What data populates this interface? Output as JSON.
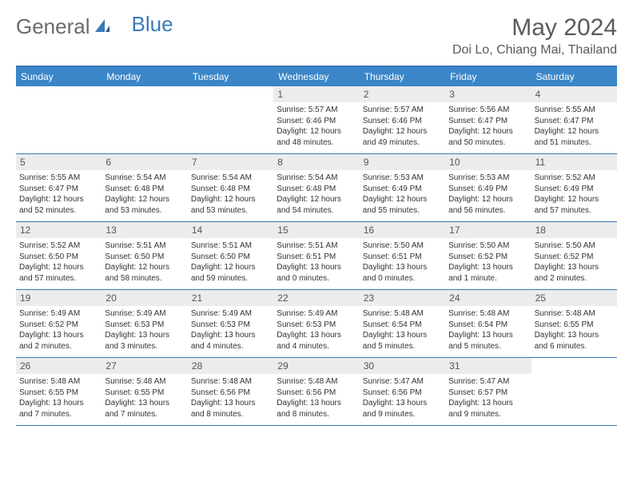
{
  "logo": {
    "text1": "General",
    "text2": "Blue"
  },
  "title": "May 2024",
  "location": "Doi Lo, Chiang Mai, Thailand",
  "colors": {
    "header_bg": "#3a86c8",
    "header_border": "#3a7ab8",
    "daynum_bg": "#ececec",
    "text": "#333333",
    "title_text": "#5a5a5a"
  },
  "day_names": [
    "Sunday",
    "Monday",
    "Tuesday",
    "Wednesday",
    "Thursday",
    "Friday",
    "Saturday"
  ],
  "weeks": [
    [
      null,
      null,
      null,
      {
        "n": "1",
        "sr": "5:57 AM",
        "ss": "6:46 PM",
        "dl1": "Daylight: 12 hours",
        "dl2": "and 48 minutes."
      },
      {
        "n": "2",
        "sr": "5:57 AM",
        "ss": "6:46 PM",
        "dl1": "Daylight: 12 hours",
        "dl2": "and 49 minutes."
      },
      {
        "n": "3",
        "sr": "5:56 AM",
        "ss": "6:47 PM",
        "dl1": "Daylight: 12 hours",
        "dl2": "and 50 minutes."
      },
      {
        "n": "4",
        "sr": "5:55 AM",
        "ss": "6:47 PM",
        "dl1": "Daylight: 12 hours",
        "dl2": "and 51 minutes."
      }
    ],
    [
      {
        "n": "5",
        "sr": "5:55 AM",
        "ss": "6:47 PM",
        "dl1": "Daylight: 12 hours",
        "dl2": "and 52 minutes."
      },
      {
        "n": "6",
        "sr": "5:54 AM",
        "ss": "6:48 PM",
        "dl1": "Daylight: 12 hours",
        "dl2": "and 53 minutes."
      },
      {
        "n": "7",
        "sr": "5:54 AM",
        "ss": "6:48 PM",
        "dl1": "Daylight: 12 hours",
        "dl2": "and 53 minutes."
      },
      {
        "n": "8",
        "sr": "5:54 AM",
        "ss": "6:48 PM",
        "dl1": "Daylight: 12 hours",
        "dl2": "and 54 minutes."
      },
      {
        "n": "9",
        "sr": "5:53 AM",
        "ss": "6:49 PM",
        "dl1": "Daylight: 12 hours",
        "dl2": "and 55 minutes."
      },
      {
        "n": "10",
        "sr": "5:53 AM",
        "ss": "6:49 PM",
        "dl1": "Daylight: 12 hours",
        "dl2": "and 56 minutes."
      },
      {
        "n": "11",
        "sr": "5:52 AM",
        "ss": "6:49 PM",
        "dl1": "Daylight: 12 hours",
        "dl2": "and 57 minutes."
      }
    ],
    [
      {
        "n": "12",
        "sr": "5:52 AM",
        "ss": "6:50 PM",
        "dl1": "Daylight: 12 hours",
        "dl2": "and 57 minutes."
      },
      {
        "n": "13",
        "sr": "5:51 AM",
        "ss": "6:50 PM",
        "dl1": "Daylight: 12 hours",
        "dl2": "and 58 minutes."
      },
      {
        "n": "14",
        "sr": "5:51 AM",
        "ss": "6:50 PM",
        "dl1": "Daylight: 12 hours",
        "dl2": "and 59 minutes."
      },
      {
        "n": "15",
        "sr": "5:51 AM",
        "ss": "6:51 PM",
        "dl1": "Daylight: 13 hours",
        "dl2": "and 0 minutes."
      },
      {
        "n": "16",
        "sr": "5:50 AM",
        "ss": "6:51 PM",
        "dl1": "Daylight: 13 hours",
        "dl2": "and 0 minutes."
      },
      {
        "n": "17",
        "sr": "5:50 AM",
        "ss": "6:52 PM",
        "dl1": "Daylight: 13 hours",
        "dl2": "and 1 minute."
      },
      {
        "n": "18",
        "sr": "5:50 AM",
        "ss": "6:52 PM",
        "dl1": "Daylight: 13 hours",
        "dl2": "and 2 minutes."
      }
    ],
    [
      {
        "n": "19",
        "sr": "5:49 AM",
        "ss": "6:52 PM",
        "dl1": "Daylight: 13 hours",
        "dl2": "and 2 minutes."
      },
      {
        "n": "20",
        "sr": "5:49 AM",
        "ss": "6:53 PM",
        "dl1": "Daylight: 13 hours",
        "dl2": "and 3 minutes."
      },
      {
        "n": "21",
        "sr": "5:49 AM",
        "ss": "6:53 PM",
        "dl1": "Daylight: 13 hours",
        "dl2": "and 4 minutes."
      },
      {
        "n": "22",
        "sr": "5:49 AM",
        "ss": "6:53 PM",
        "dl1": "Daylight: 13 hours",
        "dl2": "and 4 minutes."
      },
      {
        "n": "23",
        "sr": "5:48 AM",
        "ss": "6:54 PM",
        "dl1": "Daylight: 13 hours",
        "dl2": "and 5 minutes."
      },
      {
        "n": "24",
        "sr": "5:48 AM",
        "ss": "6:54 PM",
        "dl1": "Daylight: 13 hours",
        "dl2": "and 5 minutes."
      },
      {
        "n": "25",
        "sr": "5:48 AM",
        "ss": "6:55 PM",
        "dl1": "Daylight: 13 hours",
        "dl2": "and 6 minutes."
      }
    ],
    [
      {
        "n": "26",
        "sr": "5:48 AM",
        "ss": "6:55 PM",
        "dl1": "Daylight: 13 hours",
        "dl2": "and 7 minutes."
      },
      {
        "n": "27",
        "sr": "5:48 AM",
        "ss": "6:55 PM",
        "dl1": "Daylight: 13 hours",
        "dl2": "and 7 minutes."
      },
      {
        "n": "28",
        "sr": "5:48 AM",
        "ss": "6:56 PM",
        "dl1": "Daylight: 13 hours",
        "dl2": "and 8 minutes."
      },
      {
        "n": "29",
        "sr": "5:48 AM",
        "ss": "6:56 PM",
        "dl1": "Daylight: 13 hours",
        "dl2": "and 8 minutes."
      },
      {
        "n": "30",
        "sr": "5:47 AM",
        "ss": "6:56 PM",
        "dl1": "Daylight: 13 hours",
        "dl2": "and 9 minutes."
      },
      {
        "n": "31",
        "sr": "5:47 AM",
        "ss": "6:57 PM",
        "dl1": "Daylight: 13 hours",
        "dl2": "and 9 minutes."
      },
      null
    ]
  ],
  "labels": {
    "sunrise_prefix": "Sunrise: ",
    "sunset_prefix": "Sunset: "
  }
}
